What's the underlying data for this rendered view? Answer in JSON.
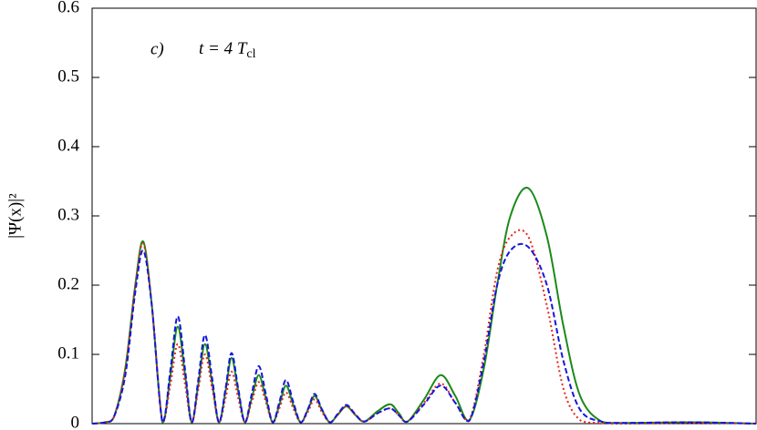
{
  "chart_data": {
    "type": "line",
    "annotation": {
      "label": "c)",
      "expr": "t = 4 T",
      "sub": "cl"
    },
    "y_label": "|Ψ(x)|²",
    "x": [
      0,
      2,
      3.3,
      5,
      6.5,
      7.7,
      9,
      10.6,
      11.8,
      12.9,
      14,
      15,
      16,
      17,
      18.1,
      19.1,
      20.1,
      21,
      22,
      23,
      24,
      25.1,
      26.2,
      27.2,
      28.2,
      29.2,
      30.3,
      31.4,
      32.5,
      33.5,
      34.6,
      35.8,
      37,
      38.3,
      39.6,
      41,
      43,
      44.9,
      46.2,
      47.5,
      50,
      52.5,
      54.7,
      56.8,
      59,
      61,
      63,
      65.7,
      68.5,
      71,
      73.5,
      76.7,
      80,
      90,
      100
    ],
    "series": [
      {
        "color": "#1a8a1a",
        "style": "solid",
        "values": [
          0,
          0.002,
          0.01,
          0.08,
          0.2,
          0.263,
          0.17,
          0.002,
          0.07,
          0.14,
          0.07,
          0.002,
          0.057,
          0.115,
          0.057,
          0.002,
          0.047,
          0.095,
          0.047,
          0.002,
          0.035,
          0.07,
          0.035,
          0.002,
          0.027,
          0.055,
          0.027,
          0.002,
          0.02,
          0.04,
          0.02,
          0.002,
          0.013,
          0.025,
          0.013,
          0.003,
          0.018,
          0.028,
          0.015,
          0.003,
          0.035,
          0.07,
          0.04,
          0.005,
          0.08,
          0.2,
          0.3,
          0.34,
          0.27,
          0.14,
          0.04,
          0.003,
          0.001,
          0.002,
          0
        ]
      },
      {
        "color": "#e8221c",
        "style": "dotted",
        "values": [
          0,
          0.002,
          0.01,
          0.08,
          0.2,
          0.26,
          0.17,
          0.002,
          0.057,
          0.115,
          0.057,
          0.002,
          0.05,
          0.1,
          0.05,
          0.002,
          0.037,
          0.075,
          0.037,
          0.002,
          0.03,
          0.06,
          0.03,
          0.002,
          0.022,
          0.045,
          0.022,
          0.002,
          0.017,
          0.035,
          0.017,
          0.002,
          0.013,
          0.025,
          0.013,
          0.003,
          0.015,
          0.022,
          0.012,
          0.003,
          0.03,
          0.058,
          0.03,
          0.005,
          0.1,
          0.22,
          0.27,
          0.27,
          0.17,
          0.05,
          0.005,
          0.001,
          0,
          0.001,
          0
        ]
      },
      {
        "color": "#1515e0",
        "style": "dashed",
        "values": [
          0,
          0.002,
          0.01,
          0.07,
          0.19,
          0.25,
          0.17,
          0.002,
          0.078,
          0.155,
          0.078,
          0.002,
          0.064,
          0.128,
          0.064,
          0.002,
          0.051,
          0.102,
          0.051,
          0.002,
          0.041,
          0.083,
          0.041,
          0.002,
          0.031,
          0.063,
          0.031,
          0.002,
          0.021,
          0.043,
          0.021,
          0.002,
          0.014,
          0.027,
          0.014,
          0.003,
          0.015,
          0.022,
          0.012,
          0.003,
          0.028,
          0.055,
          0.03,
          0.004,
          0.09,
          0.2,
          0.25,
          0.255,
          0.2,
          0.09,
          0.02,
          0.003,
          0.001,
          0.002,
          0
        ]
      }
    ],
    "xlim": [
      0,
      100
    ],
    "ylim": [
      0,
      0.6
    ],
    "yticks": [
      0,
      0.1,
      0.2,
      0.3,
      0.4,
      0.5,
      0.6
    ]
  }
}
